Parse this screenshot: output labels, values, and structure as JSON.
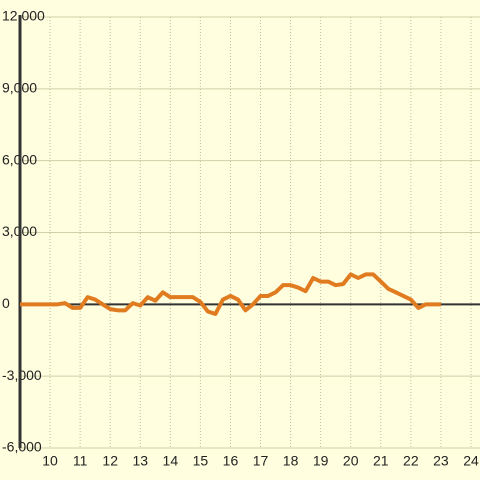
{
  "chart_data": {
    "type": "line",
    "x": [
      9,
      9.25,
      9.5,
      9.75,
      10,
      10.25,
      10.5,
      10.75,
      11,
      11.25,
      11.5,
      11.75,
      12,
      12.25,
      12.5,
      12.75,
      13,
      13.25,
      13.5,
      13.75,
      14,
      14.25,
      14.5,
      14.75,
      15,
      15.25,
      15.5,
      15.75,
      16,
      16.25,
      16.5,
      16.75,
      17,
      17.25,
      17.5,
      17.75,
      18,
      18.25,
      18.5,
      18.75,
      19,
      19.25,
      19.5,
      19.75,
      20,
      20.25,
      20.5,
      20.75,
      21,
      21.25,
      21.5,
      21.75,
      22,
      22.25,
      22.5,
      22.75,
      23
    ],
    "series": [
      {
        "color": "#e07b20",
        "values": [
          0,
          0,
          0,
          0,
          0,
          0,
          50,
          -150,
          -150,
          300,
          200,
          0,
          -200,
          -250,
          -250,
          50,
          -50,
          300,
          150,
          500,
          300,
          300,
          300,
          300,
          100,
          -300,
          -400,
          200,
          350,
          200,
          -250,
          0,
          350,
          350,
          500,
          800,
          800,
          700,
          550,
          1100,
          950,
          950,
          800,
          850,
          1250,
          1100,
          1250,
          1250,
          950,
          650,
          500,
          350,
          200,
          -150,
          0,
          0,
          0
        ]
      }
    ],
    "xlim": [
      9,
      24.3
    ],
    "xticks": [
      10,
      11,
      12,
      13,
      14,
      15,
      16,
      17,
      18,
      19,
      20,
      21,
      22,
      23,
      24
    ],
    "ylim": [
      -6000,
      12000
    ],
    "yticks": [
      {
        "value": -6000,
        "label": "-6,000"
      },
      {
        "value": -3000,
        "label": "-3,000"
      },
      0,
      {
        "value": 3000,
        "label": "3,000"
      },
      {
        "value": 6000,
        "label": "6,000"
      },
      {
        "value": 9000,
        "label": "9,000"
      },
      {
        "value": 12000,
        "label": "12,000"
      }
    ],
    "grid": true
  }
}
